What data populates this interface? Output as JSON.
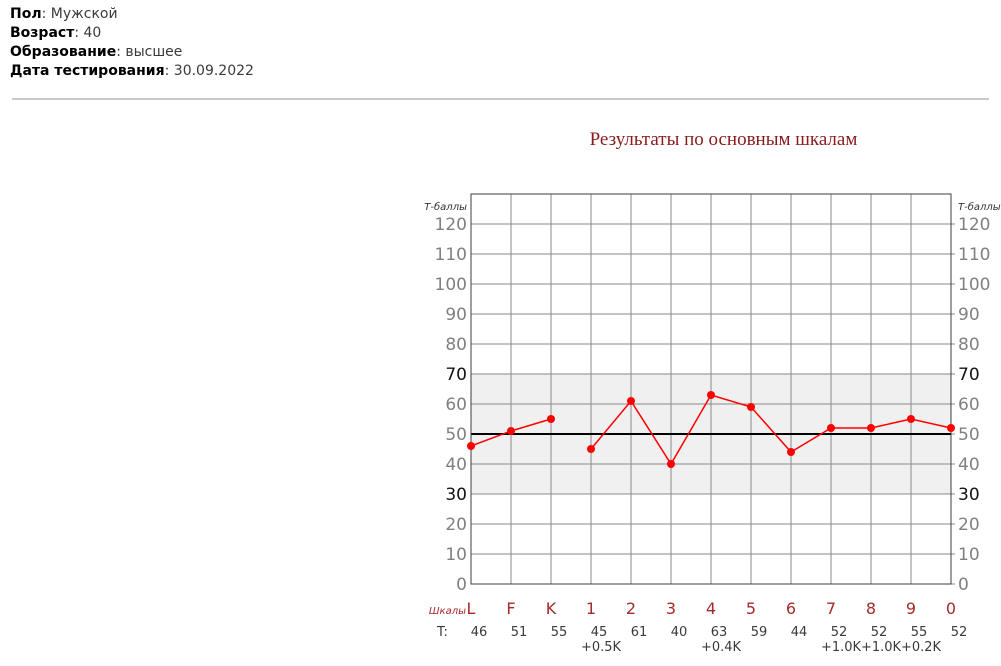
{
  "header": {
    "separator": ": ",
    "fields": [
      {
        "label": "Пол",
        "value": "Мужской"
      },
      {
        "label": "Возраст",
        "value": "40"
      },
      {
        "label": "Образование",
        "value": "высшее"
      },
      {
        "label": "Дата тестирования",
        "value": "30.09.2022"
      }
    ]
  },
  "chart": {
    "title": "Результаты по основным шкалам",
    "chart_data": {
      "type": "line",
      "title": "Результаты по основным шкалам",
      "categories": [
        "L",
        "F",
        "K",
        "1",
        "2",
        "3",
        "4",
        "5",
        "6",
        "7",
        "8",
        "9",
        "0"
      ],
      "values": [
        46,
        51,
        55,
        45,
        61,
        40,
        63,
        59,
        44,
        52,
        52,
        55,
        52
      ],
      "corrections": [
        "",
        "",
        "",
        "+0.5K",
        "",
        "",
        "+0.4K",
        "",
        "",
        "+1.0K",
        "+1.0K",
        "+0.2K",
        ""
      ],
      "segments": [
        [
          0,
          1,
          2
        ],
        [
          3,
          4,
          5,
          6,
          7,
          8,
          9,
          10,
          11,
          12
        ]
      ],
      "ylabel": "Т-баллы",
      "ylabel_right": "Т-баллы",
      "scales_row_label": "Шкалы",
      "t_row_label": "T:",
      "ylim": [
        0,
        130
      ],
      "yticks": [
        0,
        10,
        20,
        30,
        40,
        50,
        60,
        70,
        80,
        90,
        100,
        110,
        120
      ],
      "highlighted_ticks": [
        30,
        70
      ],
      "normal_band": [
        30,
        70
      ],
      "reference_line": 50,
      "grid": true,
      "legend": false
    },
    "colors": {
      "line": "#ff0000",
      "point": "#ff0000",
      "band": "#f0f0f0",
      "grid": "#8a8a8a",
      "border": "#3c3c3c",
      "reference": "#000000",
      "tick": "#808080",
      "tick_highlight": "#111111",
      "axis_label": "#333333",
      "title": "#8b1a1a",
      "scale_label": "#a52a2a",
      "value_text": "#3a3a3a"
    }
  }
}
